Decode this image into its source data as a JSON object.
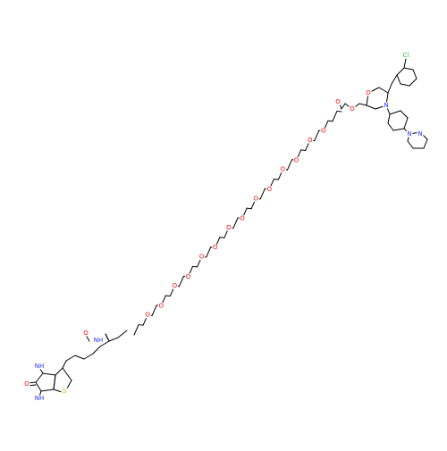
{
  "molecule": {
    "atom_labels": {
      "oxygen": "O",
      "nitrogen": "N",
      "nitrogen_h": "NH",
      "hydrogen_on_n": "H",
      "sulfur": "S",
      "chlorine": "Cl",
      "hydrogen": "H"
    },
    "colors": {
      "bond": "#000000",
      "oxygen": "#ff0d0d",
      "nitrogen": "#2233ff",
      "sulfur": "#c8b400",
      "chlorine": "#1ec81e",
      "background": "#ffffff"
    }
  }
}
